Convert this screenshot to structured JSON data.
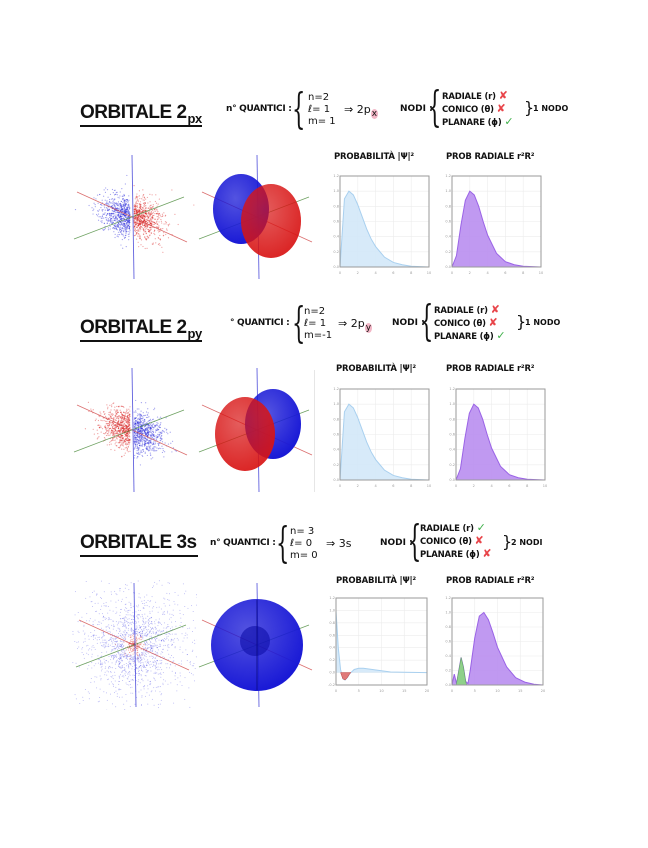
{
  "sections": [
    {
      "title": "ORBITALE 2",
      "title_sub": "px",
      "quantum_label": "n° QUANTICI :",
      "quantum_numbers": [
        "n=2",
        "ℓ= 1",
        "m= 1"
      ],
      "arrow": "⇒",
      "result_main": "2p",
      "result_sub": "x",
      "nodes_label": "NODI :",
      "nodes": [
        {
          "label": "RADIALE (r)",
          "status": "no"
        },
        {
          "label": "CONICO (θ)",
          "status": "no"
        },
        {
          "label": "PLANARE (ϕ)",
          "status": "yes"
        }
      ],
      "nodes_total": "1 NODO",
      "prob_title": "PROBABILITÀ |Ψ|²",
      "radial_title": "PROB RADIALE r²R²",
      "orbital_type": "2px",
      "lobe_colors": {
        "left": "#1a1ad6",
        "right": "#d81414"
      }
    },
    {
      "title": "ORBITALE 2",
      "title_sub": "py",
      "quantum_label": "° QUANTICI :",
      "quantum_numbers": [
        "n=2",
        "ℓ= 1",
        "m=-1"
      ],
      "arrow": "⇒",
      "result_main": "2p",
      "result_sub": "y",
      "nodes_label": "NODI :",
      "nodes": [
        {
          "label": "RADIALE (r)",
          "status": "no"
        },
        {
          "label": "CONICO (θ)",
          "status": "no"
        },
        {
          "label": "PLANARE (ϕ)",
          "status": "yes"
        }
      ],
      "nodes_total": "1 NODO",
      "prob_title": "PROBABILITÀ |Ψ|²",
      "radial_title": "PROB RADIALE r²R²",
      "orbital_type": "2py",
      "lobe_colors": {
        "left": "#d81414",
        "right": "#1a1ad6"
      }
    },
    {
      "title": "ORBITALE 3s",
      "title_sub": "",
      "quantum_label": "n° QUANTICI :",
      "quantum_numbers": [
        "n= 3",
        "ℓ= 0",
        "m= 0"
      ],
      "arrow": "⇒",
      "result_main": "3s",
      "result_sub": "",
      "nodes_label": "NODI :",
      "nodes": [
        {
          "label": "RADIALE (r)",
          "status": "yes"
        },
        {
          "label": "CONICO (θ)",
          "status": "no"
        },
        {
          "label": "PLANARE (ϕ)",
          "status": "no"
        }
      ],
      "nodes_total": "2 NODI",
      "prob_title": "PROBABILITÀ |Ψ|²",
      "radial_title": "PROB RADIALE r²R²",
      "orbital_type": "3s",
      "lobe_colors": {
        "left": "#1a1ad6",
        "right": "#1a1ad6"
      }
    }
  ],
  "marks": {
    "no": "✘",
    "yes": "✓"
  },
  "colors": {
    "prob_fill": "#d3e8f8",
    "prob_line": "#a9d0ef",
    "radial_fill": "#b98ef0",
    "radial_line": "#9a63e6",
    "negative_fill": "#e07a7a",
    "node_fill": "#8fd08a",
    "axis_x": "#d24a4a",
    "axis_y": "#4a8a3a",
    "axis_z": "#3a3ad6"
  },
  "chart_data": [
    {
      "type": "area",
      "title": "PROBABILITÀ |Ψ|²",
      "orbital": "2px",
      "x": [
        0,
        0.5,
        1,
        1.5,
        2,
        2.5,
        3,
        3.5,
        4,
        5,
        6,
        7,
        8,
        9,
        10
      ],
      "y": [
        0,
        0.9,
        1.0,
        0.95,
        0.82,
        0.66,
        0.5,
        0.37,
        0.27,
        0.13,
        0.06,
        0.03,
        0.01,
        0.005,
        0
      ],
      "xlim": [
        0,
        10
      ],
      "ylim": [
        0,
        1.2
      ],
      "xticks": [
        0,
        2,
        4,
        6,
        8,
        10
      ],
      "yticks": [
        0,
        0.2,
        0.4,
        0.6,
        0.8,
        1.0,
        1.2
      ],
      "grid": true
    },
    {
      "type": "area",
      "title": "PROB RADIALE r²R²",
      "orbital": "2px",
      "x": [
        0,
        0.5,
        1,
        1.5,
        2,
        2.5,
        3,
        3.5,
        4,
        5,
        6,
        7,
        8,
        9,
        10
      ],
      "y": [
        0,
        0.15,
        0.55,
        0.88,
        1.0,
        0.95,
        0.8,
        0.6,
        0.42,
        0.18,
        0.07,
        0.03,
        0.01,
        0.005,
        0
      ],
      "xlim": [
        0,
        10
      ],
      "ylim": [
        0,
        1.2
      ],
      "xticks": [
        0,
        2,
        4,
        6,
        8,
        10
      ],
      "yticks": [
        0,
        0.2,
        0.4,
        0.6,
        0.8,
        1.0,
        1.2
      ],
      "grid": true
    },
    {
      "type": "area",
      "title": "PROBABILITÀ |Ψ|²",
      "orbital": "2py",
      "x": [
        0,
        0.5,
        1,
        1.5,
        2,
        2.5,
        3,
        3.5,
        4,
        5,
        6,
        7,
        8,
        9,
        10
      ],
      "y": [
        0,
        0.9,
        1.0,
        0.95,
        0.82,
        0.66,
        0.5,
        0.37,
        0.27,
        0.13,
        0.06,
        0.03,
        0.01,
        0.005,
        0
      ],
      "xlim": [
        0,
        10
      ],
      "ylim": [
        0,
        1.2
      ],
      "xticks": [
        0,
        2,
        4,
        6,
        8,
        10
      ],
      "yticks": [
        0,
        0.2,
        0.4,
        0.6,
        0.8,
        1.0,
        1.2
      ],
      "grid": true
    },
    {
      "type": "area",
      "title": "PROB RADIALE r²R²",
      "orbital": "2py",
      "x": [
        0,
        0.5,
        1,
        1.5,
        2,
        2.5,
        3,
        3.5,
        4,
        5,
        6,
        7,
        8,
        9,
        10
      ],
      "y": [
        0,
        0.15,
        0.55,
        0.88,
        1.0,
        0.95,
        0.8,
        0.6,
        0.42,
        0.18,
        0.07,
        0.03,
        0.01,
        0.005,
        0
      ],
      "xlim": [
        0,
        10
      ],
      "ylim": [
        0,
        1.2
      ],
      "xticks": [
        0,
        2,
        4,
        6,
        8,
        10
      ],
      "yticks": [
        0,
        0.2,
        0.4,
        0.6,
        0.8,
        1.0,
        1.2
      ],
      "grid": true
    },
    {
      "type": "area",
      "title": "PROBABILITÀ |Ψ|²",
      "orbital": "3s",
      "x": [
        0,
        0.5,
        1,
        1.5,
        2,
        2.5,
        3,
        4,
        5,
        6,
        8,
        10,
        12,
        15,
        20
      ],
      "y": [
        1.0,
        0.4,
        0.05,
        -0.1,
        -0.12,
        -0.08,
        -0.02,
        0.05,
        0.07,
        0.07,
        0.05,
        0.03,
        0.01,
        0.005,
        0
      ],
      "xlim": [
        0,
        20
      ],
      "ylim": [
        -0.2,
        1.2
      ],
      "xticks": [
        0,
        5,
        10,
        15,
        20
      ],
      "yticks": [
        -0.2,
        0,
        0.2,
        0.4,
        0.6,
        0.8,
        1.0,
        1.2
      ],
      "grid": true
    },
    {
      "type": "area",
      "title": "PROB RADIALE r²R²",
      "orbital": "3s",
      "x": [
        0,
        0.5,
        1,
        1.5,
        2,
        2.5,
        3,
        3.5,
        4,
        5,
        6,
        7,
        8,
        9,
        10,
        12,
        14,
        16,
        18,
        20
      ],
      "y": [
        0,
        0.15,
        0.02,
        0.2,
        0.38,
        0.25,
        0.05,
        0.02,
        0.2,
        0.65,
        0.95,
        1.0,
        0.9,
        0.72,
        0.52,
        0.25,
        0.1,
        0.04,
        0.01,
        0
      ],
      "xlim": [
        0,
        20
      ],
      "ylim": [
        0,
        1.2
      ],
      "xticks": [
        0,
        5,
        10,
        15,
        20
      ],
      "yticks": [
        0,
        0.2,
        0.4,
        0.6,
        0.8,
        1.0,
        1.2
      ],
      "grid": true
    }
  ]
}
